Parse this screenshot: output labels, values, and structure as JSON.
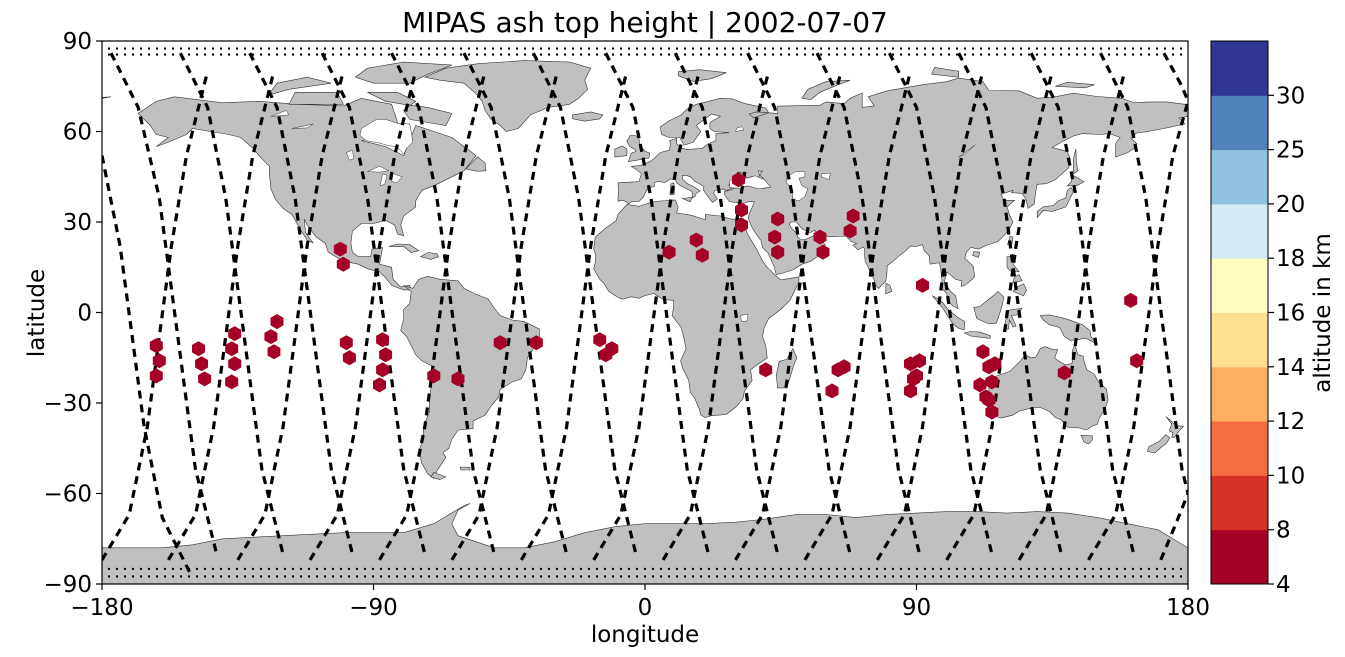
{
  "chart_data": {
    "type": "scatter",
    "title": "MIPAS ash top height | 2002-07-07",
    "xlabel": "longitude",
    "ylabel": "latitude",
    "xlim": [
      -180,
      180
    ],
    "ylim": [
      -90,
      90
    ],
    "xticks": [
      -180,
      -90,
      0,
      90,
      180
    ],
    "yticks": [
      -90,
      -60,
      -30,
      0,
      30,
      60,
      90
    ],
    "xtick_labels": [
      "−180",
      "−90",
      "0",
      "90",
      "180"
    ],
    "ytick_labels": [
      "−90",
      "−60",
      "−30",
      "0",
      "30",
      "60",
      "90"
    ],
    "background_map": "world coastlines, land in gray",
    "orbit_tracks": "dashed black lines",
    "marker": "hexagon",
    "colorbar": {
      "label": "altitude in km",
      "boundaries": [
        4,
        8,
        10,
        12,
        14,
        16,
        18,
        20,
        25,
        30
      ],
      "tick_labels": [
        "4",
        "8",
        "10",
        "12",
        "14",
        "16",
        "18",
        "20",
        "25",
        "30"
      ],
      "colors": [
        "#a50026",
        "#d73027",
        "#f46d43",
        "#fdae61",
        "#fee090",
        "#fffcbf",
        "#d4ecf3",
        "#90c3de",
        "#4f84bb",
        "#313695"
      ]
    },
    "points": [
      {
        "lon": -162,
        "lat": -11,
        "alt": 6
      },
      {
        "lon": -161,
        "lat": -16,
        "alt": 6
      },
      {
        "lon": -162,
        "lat": -21,
        "alt": 6
      },
      {
        "lon": -148,
        "lat": -12,
        "alt": 6
      },
      {
        "lon": -147,
        "lat": -17,
        "alt": 6
      },
      {
        "lon": -146,
        "lat": -22,
        "alt": 6
      },
      {
        "lon": -136,
        "lat": -7,
        "alt": 6
      },
      {
        "lon": -137,
        "lat": -12,
        "alt": 6
      },
      {
        "lon": -136,
        "lat": -17,
        "alt": 6
      },
      {
        "lon": -137,
        "lat": -23,
        "alt": 6
      },
      {
        "lon": -122,
        "lat": -3,
        "alt": 6
      },
      {
        "lon": -124,
        "lat": -8,
        "alt": 6
      },
      {
        "lon": -123,
        "lat": -13,
        "alt": 6
      },
      {
        "lon": -101,
        "lat": 21,
        "alt": 6
      },
      {
        "lon": -100,
        "lat": 16,
        "alt": 6
      },
      {
        "lon": -99,
        "lat": -10,
        "alt": 6
      },
      {
        "lon": -98,
        "lat": -15,
        "alt": 6
      },
      {
        "lon": -87,
        "lat": -9,
        "alt": 6
      },
      {
        "lon": -86,
        "lat": -14,
        "alt": 6
      },
      {
        "lon": -87,
        "lat": -19,
        "alt": 6
      },
      {
        "lon": -88,
        "lat": -24,
        "alt": 6
      },
      {
        "lon": -70,
        "lat": -21,
        "alt": 6
      },
      {
        "lon": -62,
        "lat": -22,
        "alt": 6
      },
      {
        "lon": -48,
        "lat": -10,
        "alt": 6
      },
      {
        "lon": -36,
        "lat": -10,
        "alt": 6
      },
      {
        "lon": -15,
        "lat": -9,
        "alt": 6
      },
      {
        "lon": -13,
        "lat": -14,
        "alt": 6
      },
      {
        "lon": -11,
        "lat": -12,
        "alt": 6
      },
      {
        "lon": 8,
        "lat": 20,
        "alt": 6
      },
      {
        "lon": 17,
        "lat": 24,
        "alt": 6
      },
      {
        "lon": 19,
        "lat": 19,
        "alt": 6
      },
      {
        "lon": 31,
        "lat": 44,
        "alt": 6
      },
      {
        "lon": 32,
        "lat": 34,
        "alt": 6
      },
      {
        "lon": 32,
        "lat": 29,
        "alt": 6
      },
      {
        "lon": 44,
        "lat": 31,
        "alt": 6
      },
      {
        "lon": 43,
        "lat": 25,
        "alt": 6
      },
      {
        "lon": 44,
        "lat": 20,
        "alt": 6
      },
      {
        "lon": 40,
        "lat": -19,
        "alt": 6
      },
      {
        "lon": 58,
        "lat": 25,
        "alt": 6
      },
      {
        "lon": 59,
        "lat": 20,
        "alt": 6
      },
      {
        "lon": 69,
        "lat": 32,
        "alt": 6
      },
      {
        "lon": 68,
        "lat": 27,
        "alt": 6
      },
      {
        "lon": 64,
        "lat": -19,
        "alt": 6
      },
      {
        "lon": 66,
        "lat": -18,
        "alt": 6
      },
      {
        "lon": 62,
        "lat": -26,
        "alt": 6
      },
      {
        "lon": 92,
        "lat": 9,
        "alt": 6
      },
      {
        "lon": 88,
        "lat": -17,
        "alt": 6
      },
      {
        "lon": 91,
        "lat": -16,
        "alt": 6
      },
      {
        "lon": 90,
        "lat": -21,
        "alt": 6
      },
      {
        "lon": 89,
        "lat": -22,
        "alt": 6
      },
      {
        "lon": 88,
        "lat": -26,
        "alt": 6
      },
      {
        "lon": 112,
        "lat": -13,
        "alt": 6
      },
      {
        "lon": 114,
        "lat": -18,
        "alt": 6
      },
      {
        "lon": 116,
        "lat": -17,
        "alt": 6
      },
      {
        "lon": 111,
        "lat": -24,
        "alt": 6
      },
      {
        "lon": 115,
        "lat": -23,
        "alt": 6
      },
      {
        "lon": 113,
        "lat": -28,
        "alt": 6
      },
      {
        "lon": 114,
        "lat": -29,
        "alt": 6
      },
      {
        "lon": 115,
        "lat": -33,
        "alt": 6
      },
      {
        "lon": 139,
        "lat": -20,
        "alt": 6
      },
      {
        "lon": 161,
        "lat": 4,
        "alt": 6
      },
      {
        "lon": 163,
        "lat": -16,
        "alt": 6
      }
    ],
    "tracks": [
      [
        [
          -180,
          52
        ],
        [
          -174,
          22
        ],
        [
          -170,
          -8
        ],
        [
          -166,
          -38
        ],
        [
          -160,
          -68
        ],
        [
          -151,
          -86
        ]
      ],
      [
        [
          -177,
          86
        ],
        [
          -168,
          68
        ],
        [
          -161,
          38
        ],
        [
          -157,
          8
        ],
        [
          -153,
          -22
        ],
        [
          -149,
          -52
        ],
        [
          -142,
          -80
        ]
      ],
      [
        [
          -180,
          -82
        ],
        [
          -171,
          -67
        ],
        [
          -165,
          -38
        ],
        [
          -161,
          -8
        ],
        [
          -157,
          22
        ],
        [
          -152,
          52
        ],
        [
          -145,
          80
        ]
      ],
      [
        [
          -154,
          86
        ],
        [
          -145,
          68
        ],
        [
          -139,
          38
        ],
        [
          -135,
          8
        ],
        [
          -131,
          -22
        ],
        [
          -127,
          -52
        ],
        [
          -120,
          -80
        ]
      ],
      [
        [
          -158,
          -82
        ],
        [
          -149,
          -67
        ],
        [
          -143,
          -38
        ],
        [
          -139,
          -8
        ],
        [
          -135,
          22
        ],
        [
          -130,
          52
        ],
        [
          -123,
          80
        ]
      ],
      [
        [
          -131,
          86
        ],
        [
          -122,
          68
        ],
        [
          -116,
          38
        ],
        [
          -112,
          8
        ],
        [
          -108,
          -22
        ],
        [
          -104,
          -52
        ],
        [
          -97,
          -80
        ]
      ],
      [
        [
          -135,
          -82
        ],
        [
          -126,
          -67
        ],
        [
          -120,
          -38
        ],
        [
          -116,
          -8
        ],
        [
          -112,
          22
        ],
        [
          -107,
          52
        ],
        [
          -100,
          80
        ]
      ],
      [
        [
          -107,
          86
        ],
        [
          -98,
          68
        ],
        [
          -92,
          38
        ],
        [
          -88,
          8
        ],
        [
          -84,
          -22
        ],
        [
          -80,
          -52
        ],
        [
          -73,
          -80
        ]
      ],
      [
        [
          -111,
          -82
        ],
        [
          -102,
          -67
        ],
        [
          -96,
          -38
        ],
        [
          -92,
          -8
        ],
        [
          -88,
          22
        ],
        [
          -83,
          52
        ],
        [
          -76,
          80
        ]
      ],
      [
        [
          -84,
          86
        ],
        [
          -75,
          68
        ],
        [
          -69,
          38
        ],
        [
          -65,
          8
        ],
        [
          -61,
          -22
        ],
        [
          -57,
          -52
        ],
        [
          -50,
          -80
        ]
      ],
      [
        [
          -88,
          -82
        ],
        [
          -79,
          -67
        ],
        [
          -73,
          -38
        ],
        [
          -69,
          -8
        ],
        [
          -65,
          22
        ],
        [
          -60,
          52
        ],
        [
          -53,
          80
        ]
      ],
      [
        [
          -60,
          86
        ],
        [
          -51,
          68
        ],
        [
          -45,
          38
        ],
        [
          -41,
          8
        ],
        [
          -37,
          -22
        ],
        [
          -33,
          -52
        ],
        [
          -26,
          -80
        ]
      ],
      [
        [
          -64,
          -82
        ],
        [
          -55,
          -67
        ],
        [
          -49,
          -38
        ],
        [
          -45,
          -8
        ],
        [
          -41,
          22
        ],
        [
          -36,
          52
        ],
        [
          -29,
          80
        ]
      ],
      [
        [
          -37,
          86
        ],
        [
          -28,
          68
        ],
        [
          -22,
          38
        ],
        [
          -18,
          8
        ],
        [
          -14,
          -22
        ],
        [
          -10,
          -52
        ],
        [
          -3,
          -80
        ]
      ],
      [
        [
          -41,
          -82
        ],
        [
          -32,
          -67
        ],
        [
          -26,
          -38
        ],
        [
          -22,
          -8
        ],
        [
          -18,
          22
        ],
        [
          -13,
          52
        ],
        [
          -6,
          80
        ]
      ],
      [
        [
          -13,
          86
        ],
        [
          -4,
          68
        ],
        [
          2,
          38
        ],
        [
          6,
          8
        ],
        [
          10,
          -22
        ],
        [
          14,
          -52
        ],
        [
          21,
          -80
        ]
      ],
      [
        [
          -17,
          -82
        ],
        [
          -8,
          -67
        ],
        [
          -2,
          -38
        ],
        [
          2,
          -8
        ],
        [
          6,
          22
        ],
        [
          11,
          52
        ],
        [
          18,
          80
        ]
      ],
      [
        [
          10,
          86
        ],
        [
          19,
          68
        ],
        [
          25,
          38
        ],
        [
          29,
          8
        ],
        [
          33,
          -22
        ],
        [
          37,
          -52
        ],
        [
          44,
          -80
        ]
      ],
      [
        [
          6,
          -82
        ],
        [
          15,
          -67
        ],
        [
          21,
          -38
        ],
        [
          25,
          -8
        ],
        [
          29,
          22
        ],
        [
          34,
          52
        ],
        [
          41,
          80
        ]
      ],
      [
        [
          34,
          86
        ],
        [
          43,
          68
        ],
        [
          49,
          38
        ],
        [
          53,
          8
        ],
        [
          57,
          -22
        ],
        [
          61,
          -52
        ],
        [
          68,
          -80
        ]
      ],
      [
        [
          30,
          -82
        ],
        [
          39,
          -67
        ],
        [
          45,
          -38
        ],
        [
          49,
          -8
        ],
        [
          53,
          22
        ],
        [
          58,
          52
        ],
        [
          65,
          80
        ]
      ],
      [
        [
          57,
          86
        ],
        [
          66,
          68
        ],
        [
          72,
          38
        ],
        [
          76,
          8
        ],
        [
          80,
          -22
        ],
        [
          84,
          -52
        ],
        [
          91,
          -80
        ]
      ],
      [
        [
          53,
          -82
        ],
        [
          62,
          -67
        ],
        [
          68,
          -38
        ],
        [
          72,
          -8
        ],
        [
          76,
          22
        ],
        [
          81,
          52
        ],
        [
          88,
          80
        ]
      ],
      [
        [
          81,
          86
        ],
        [
          90,
          68
        ],
        [
          96,
          38
        ],
        [
          100,
          8
        ],
        [
          104,
          -22
        ],
        [
          108,
          -52
        ],
        [
          115,
          -80
        ]
      ],
      [
        [
          77,
          -82
        ],
        [
          86,
          -67
        ],
        [
          92,
          -38
        ],
        [
          96,
          -8
        ],
        [
          100,
          22
        ],
        [
          105,
          52
        ],
        [
          112,
          80
        ]
      ],
      [
        [
          104,
          86
        ],
        [
          113,
          68
        ],
        [
          119,
          38
        ],
        [
          123,
          8
        ],
        [
          127,
          -22
        ],
        [
          131,
          -52
        ],
        [
          138,
          -80
        ]
      ],
      [
        [
          100,
          -82
        ],
        [
          109,
          -67
        ],
        [
          115,
          -38
        ],
        [
          119,
          -8
        ],
        [
          123,
          22
        ],
        [
          128,
          52
        ],
        [
          135,
          80
        ]
      ],
      [
        [
          128,
          86
        ],
        [
          137,
          68
        ],
        [
          143,
          38
        ],
        [
          147,
          8
        ],
        [
          151,
          -22
        ],
        [
          155,
          -52
        ],
        [
          162,
          -80
        ]
      ],
      [
        [
          124,
          -82
        ],
        [
          133,
          -67
        ],
        [
          139,
          -38
        ],
        [
          143,
          -8
        ],
        [
          147,
          22
        ],
        [
          152,
          52
        ],
        [
          159,
          80
        ]
      ],
      [
        [
          151,
          86
        ],
        [
          160,
          68
        ],
        [
          166,
          38
        ],
        [
          170,
          8
        ],
        [
          174,
          -22
        ],
        [
          178,
          -52
        ],
        [
          180,
          -60
        ]
      ],
      [
        [
          147,
          -82
        ],
        [
          156,
          -67
        ],
        [
          162,
          -38
        ],
        [
          166,
          -8
        ],
        [
          170,
          22
        ],
        [
          175,
          52
        ],
        [
          180,
          70
        ]
      ],
      [
        [
          171,
          -82
        ],
        [
          176,
          -70
        ],
        [
          180,
          -60
        ]
      ],
      [
        [
          172,
          86
        ],
        [
          178,
          75
        ],
        [
          180,
          70
        ]
      ]
    ]
  }
}
